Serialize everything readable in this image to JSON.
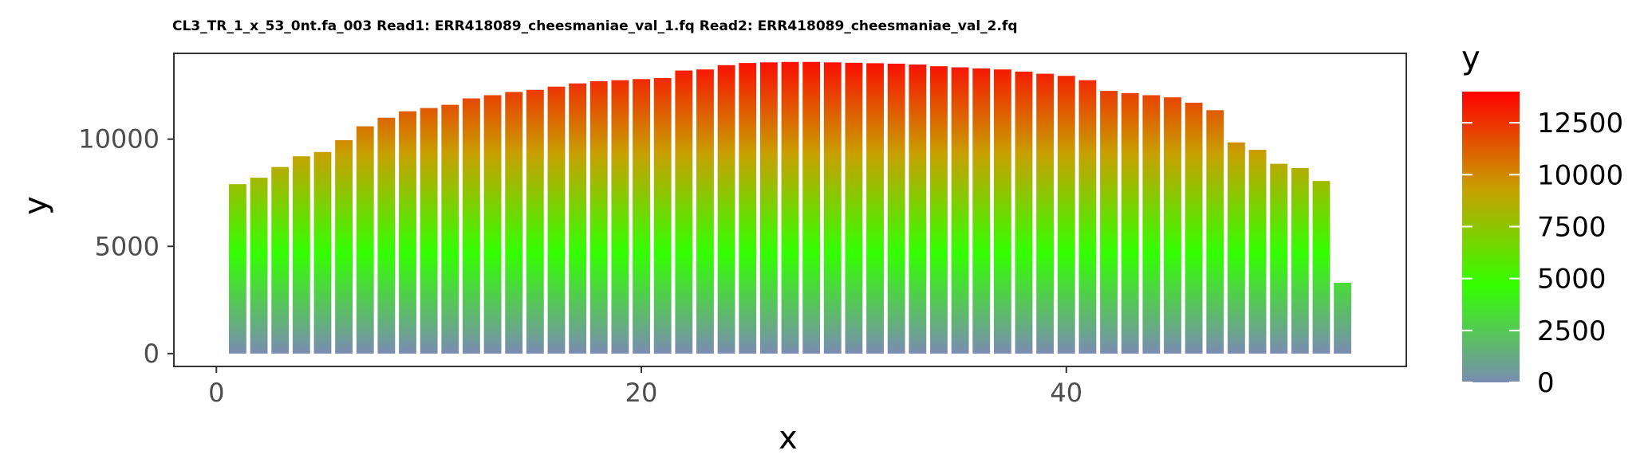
{
  "chart_data": {
    "type": "bar",
    "title": "CL3_TR_1_x_53_0nt.fa_003 Read1: ERR418089_cheesmaniae_val_1.fq Read2: ERR418089_cheesmaniae_val_2.fq",
    "xlabel": "x",
    "ylabel": "y",
    "xlim": [
      -2,
      56
    ],
    "ylim": [
      -600,
      14000
    ],
    "x_ticks": [
      0,
      20,
      40
    ],
    "y_ticks": [
      0,
      5000,
      10000
    ],
    "grid": false,
    "legend": {
      "title": "y",
      "placement": "right",
      "type": "colorbar",
      "range": [
        0,
        14000
      ],
      "breaks": [
        0,
        2500,
        5000,
        7500,
        10000,
        12500
      ]
    },
    "color_scale": [
      {
        "value": 0,
        "color": "#7a8cb3"
      },
      {
        "value": 4700,
        "color": "#33ff00"
      },
      {
        "value": 9300,
        "color": "#c8a000"
      },
      {
        "value": 14000,
        "color": "#ff0000"
      }
    ],
    "x": [
      1,
      2,
      3,
      4,
      5,
      6,
      7,
      8,
      9,
      10,
      11,
      12,
      13,
      14,
      15,
      16,
      17,
      18,
      19,
      20,
      21,
      22,
      23,
      24,
      25,
      26,
      27,
      28,
      29,
      30,
      31,
      32,
      33,
      34,
      35,
      36,
      37,
      38,
      39,
      40,
      41,
      42,
      43,
      44,
      45,
      46,
      47,
      48,
      49,
      50,
      51,
      52,
      53
    ],
    "values": [
      7900,
      8200,
      8700,
      9200,
      9400,
      9950,
      10600,
      11000,
      11300,
      11450,
      11600,
      11900,
      12050,
      12200,
      12300,
      12450,
      12600,
      12700,
      12750,
      12800,
      12850,
      13200,
      13250,
      13450,
      13550,
      13580,
      13600,
      13600,
      13580,
      13560,
      13540,
      13520,
      13480,
      13400,
      13350,
      13300,
      13250,
      13150,
      13050,
      12950,
      12750,
      12250,
      12150,
      12050,
      11950,
      11700,
      11350,
      9850,
      9500,
      8850,
      8650,
      8050,
      3300
    ]
  }
}
